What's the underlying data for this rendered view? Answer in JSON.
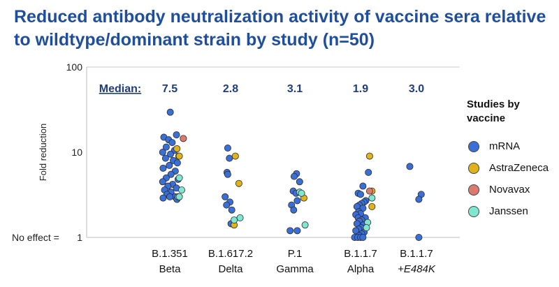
{
  "title": "Reduced antibody neutralization activity of vaccine sera relative to wildtype/dominant strain by study (n=50)",
  "legend": {
    "title": "Studies by vaccine",
    "items": [
      {
        "name": "mRNA",
        "color": "#3a6fd8"
      },
      {
        "name": "AstraZeneca",
        "color": "#e0b21c"
      },
      {
        "name": "Novavax",
        "color": "#dc7a70"
      },
      {
        "name": "Janssen",
        "color": "#7fe7d0"
      }
    ]
  },
  "chart_data": {
    "type": "scatter",
    "title": "Reduced antibody neutralization activity of vaccine sera relative to wildtype/dominant strain by study (n=50)",
    "ylabel": "Fold reduction",
    "yscale": "log",
    "ylim": [
      1,
      100
    ],
    "yticks": [
      "100",
      "10",
      "1"
    ],
    "no_effect_label": "No effect =",
    "median_label": "Median:",
    "categories": [
      {
        "line1": "B.1.351",
        "line2": "Beta",
        "median": "7.5"
      },
      {
        "line1": "B.1.617.2",
        "line2": "Delta",
        "median": "2.8"
      },
      {
        "line1": "P.1",
        "line2": "Gamma",
        "median": "3.1"
      },
      {
        "line1": "B.1.1.7",
        "line2": "Alpha",
        "median": "1.9"
      },
      {
        "line1": "B.1.1.7",
        "line2": "+E484K",
        "median": "3.0"
      }
    ],
    "series": [
      {
        "name": "mRNA",
        "points": [
          [
            0,
            29.5,
            0.02
          ],
          [
            0,
            15.0,
            -0.25
          ],
          [
            0,
            14.0,
            -0.05
          ],
          [
            0,
            16.0,
            0.28
          ],
          [
            0,
            13.0,
            0.1
          ],
          [
            0,
            11.5,
            -0.15
          ],
          [
            0,
            10.5,
            0.2
          ],
          [
            0,
            10.0,
            -0.3
          ],
          [
            0,
            9.5,
            0.03
          ],
          [
            0,
            9.0,
            0.38
          ],
          [
            0,
            8.5,
            -0.18
          ],
          [
            0,
            8.0,
            0.15
          ],
          [
            0,
            7.5,
            0.32
          ],
          [
            0,
            7.0,
            -0.02
          ],
          [
            0,
            6.5,
            -0.28
          ],
          [
            0,
            6.0,
            0.23
          ],
          [
            0,
            5.5,
            0.05
          ],
          [
            0,
            5.0,
            -0.15
          ],
          [
            0,
            4.8,
            0.35
          ],
          [
            0,
            4.5,
            -0.3
          ],
          [
            0,
            4.2,
            0.12
          ],
          [
            0,
            4.0,
            -0.08
          ],
          [
            0,
            3.8,
            0.28
          ],
          [
            0,
            3.6,
            -0.22
          ],
          [
            0,
            3.4,
            0.05
          ],
          [
            0,
            3.2,
            -0.12
          ],
          [
            0,
            3.0,
            0.22
          ],
          [
            0,
            2.9,
            -0.28
          ],
          [
            0,
            3.0,
            0.0
          ],
          [
            0,
            2.8,
            0.3
          ],
          [
            1,
            11.2,
            -0.12
          ],
          [
            1,
            8.5,
            -0.05
          ],
          [
            1,
            5.8,
            -0.15
          ],
          [
            1,
            5.5,
            -0.12
          ],
          [
            1,
            3.0,
            -0.23
          ],
          [
            1,
            2.6,
            -0.03
          ],
          [
            1,
            2.4,
            -0.17
          ],
          [
            1,
            2.1,
            0.05
          ],
          [
            1,
            1.45,
            0.02
          ],
          [
            2,
            5.6,
            0.07
          ],
          [
            2,
            5.2,
            -0.03
          ],
          [
            2,
            4.5,
            0.2
          ],
          [
            2,
            3.5,
            -0.07
          ],
          [
            2,
            3.3,
            0.05
          ],
          [
            2,
            2.7,
            0.1
          ],
          [
            2,
            2.4,
            -0.14
          ],
          [
            2,
            2.1,
            -0.05
          ],
          [
            2,
            1.2,
            -0.2
          ],
          [
            2,
            1.2,
            0.1
          ],
          [
            3,
            4.0,
            0.1
          ],
          [
            3,
            3.3,
            -0.1
          ],
          [
            3,
            3.2,
            0.0
          ],
          [
            3,
            2.7,
            0.22
          ],
          [
            3,
            2.6,
            0.15
          ],
          [
            3,
            2.5,
            0.05
          ],
          [
            3,
            2.4,
            -0.05
          ],
          [
            3,
            2.3,
            -0.15
          ],
          [
            3,
            2.2,
            0.1
          ],
          [
            3,
            2.0,
            -0.08
          ],
          [
            3,
            1.9,
            0.0
          ],
          [
            3,
            1.85,
            -0.2
          ],
          [
            3,
            1.7,
            0.2
          ],
          [
            3,
            1.7,
            -0.1
          ],
          [
            3,
            1.6,
            0.05
          ],
          [
            3,
            1.55,
            -0.05
          ],
          [
            3,
            1.45,
            -0.15
          ],
          [
            3,
            1.4,
            0.12
          ],
          [
            3,
            1.3,
            0.02
          ],
          [
            3,
            1.25,
            -0.08
          ],
          [
            3,
            1.2,
            -0.2
          ],
          [
            3,
            1.15,
            0.15
          ],
          [
            3,
            1.1,
            0.05
          ],
          [
            3,
            1.05,
            -0.05
          ],
          [
            3,
            1.0,
            -0.25
          ],
          [
            3,
            1.0,
            -0.12
          ],
          [
            3,
            1.0,
            0.0
          ],
          [
            3,
            1.0,
            0.1
          ],
          [
            3,
            5.8,
            0.33
          ],
          [
            4,
            6.8,
            -0.28
          ],
          [
            4,
            3.2,
            0.2
          ],
          [
            4,
            2.8,
            0.1
          ],
          [
            4,
            1.0,
            0.1
          ]
        ]
      },
      {
        "name": "AstraZeneca",
        "points": [
          [
            0,
            11.0,
            0.3
          ],
          [
            0,
            9.0,
            0.4
          ],
          [
            1,
            9.0,
            0.2
          ],
          [
            1,
            4.3,
            0.35
          ],
          [
            1,
            1.4,
            0.15
          ],
          [
            2,
            2.9,
            0.38
          ],
          [
            3,
            9.0,
            0.38
          ],
          [
            3,
            3.5,
            0.48
          ],
          [
            3,
            2.3,
            0.48
          ]
        ]
      },
      {
        "name": "Novavax",
        "points": [
          [
            0,
            14.5,
            0.57
          ],
          [
            3,
            3.5,
            0.38
          ]
        ]
      },
      {
        "name": "Janssen",
        "points": [
          [
            0,
            5.0,
            0.4
          ],
          [
            0,
            3.6,
            0.5
          ],
          [
            0,
            3.0,
            0.35
          ],
          [
            0,
            3.0,
            0.4
          ],
          [
            1,
            1.6,
            0.15
          ],
          [
            1,
            1.7,
            0.4
          ],
          [
            2,
            3.4,
            0.2
          ],
          [
            2,
            3.3,
            0.28
          ],
          [
            2,
            1.4,
            0.43
          ],
          [
            3,
            2.9,
            0.48
          ],
          [
            3,
            1.5,
            0.3
          ],
          [
            3,
            1.3,
            0.25
          ]
        ]
      }
    ]
  }
}
